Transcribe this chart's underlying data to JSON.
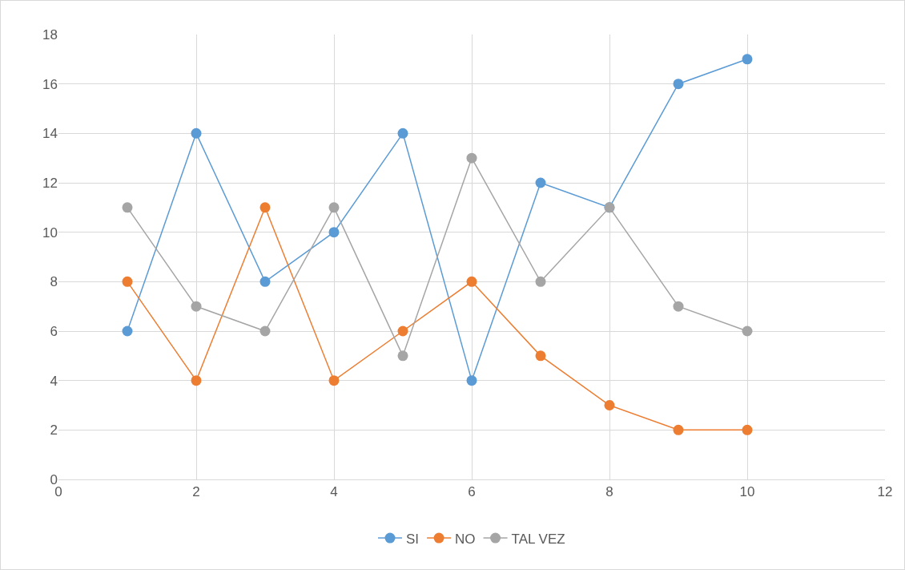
{
  "chart_data": {
    "type": "line",
    "x": [
      1,
      2,
      3,
      4,
      5,
      6,
      7,
      8,
      9,
      10
    ],
    "series": [
      {
        "name": "SI",
        "color": "#5b9bd5",
        "values": [
          6,
          14,
          8,
          10,
          14,
          4,
          12,
          11,
          16,
          17
        ]
      },
      {
        "name": "NO",
        "color": "#ed7d31",
        "values": [
          8,
          4,
          11,
          4,
          6,
          8,
          5,
          3,
          2,
          2
        ]
      },
      {
        "name": "TAL VEZ",
        "color": "#a5a5a5",
        "values": [
          11,
          7,
          6,
          11,
          5,
          13,
          8,
          11,
          7,
          6
        ]
      }
    ],
    "xlim": [
      0,
      12
    ],
    "xticks": [
      0,
      2,
      4,
      6,
      8,
      10,
      12
    ],
    "ylim": [
      0,
      18
    ],
    "yticks": [
      0,
      2,
      4,
      6,
      8,
      10,
      12,
      14,
      16,
      18
    ],
    "grid": true,
    "legend": "bottom",
    "marker": "circle",
    "line_style": "solid"
  }
}
